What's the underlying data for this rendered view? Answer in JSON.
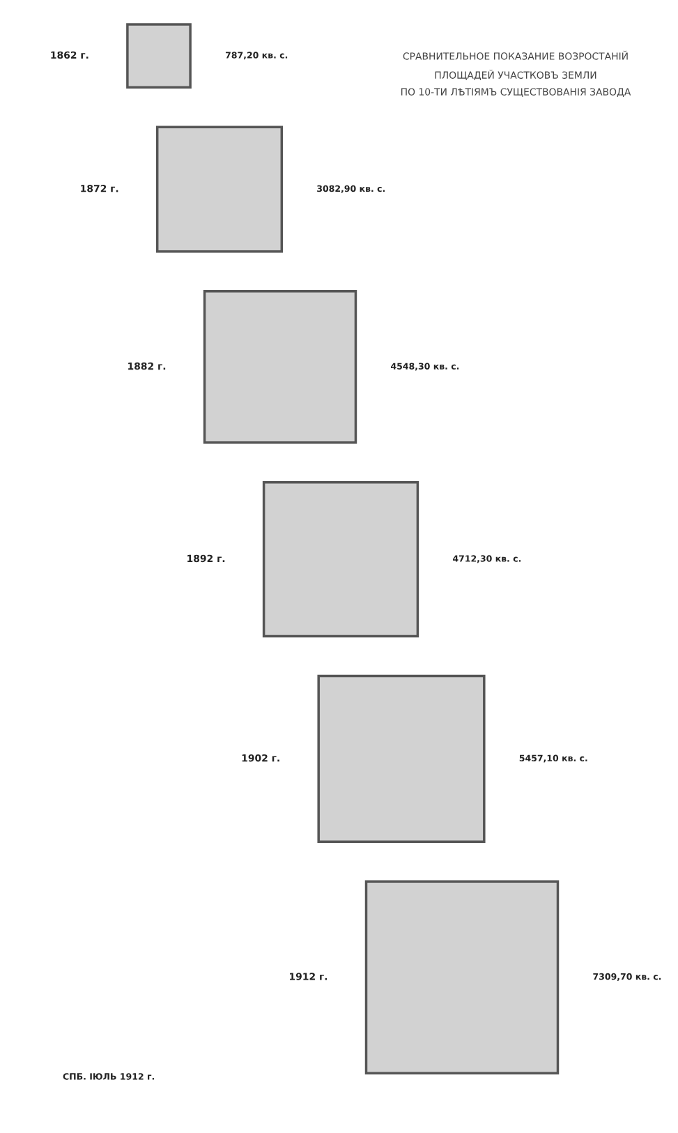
{
  "chart_data": {
    "type": "other",
    "title": "СРАВНИТЕЛЬНОЕ ПОКАЗАНИЕ ВОЗРОСТАНІЙ\nПЛОЩАДЕЙ УЧАСТКОВЪ ЗЕМЛИ\nПО 10-ТИ ЛѢТІЯМЪ СУЩЕСТВОВАНІЯ ЗАВОДА",
    "categories": [
      "1862 г.",
      "1872 г.",
      "1882 г.",
      "1892 г.",
      "1902 г.",
      "1912 г."
    ],
    "values": [
      787.2,
      3082.9,
      4548.3,
      4712.3,
      5457.1,
      7309.7
    ],
    "value_labels": [
      "787,20 кв. с.",
      "3082,90 кв. с.",
      "4548,30 кв. с.",
      "4712,30 кв. с.",
      "5457,10 кв. с.",
      "7309,70 кв. с."
    ],
    "color": "#d2d2d2",
    "annotations": [
      "СПБ. ІЮЛЬ 1912 г."
    ]
  }
}
